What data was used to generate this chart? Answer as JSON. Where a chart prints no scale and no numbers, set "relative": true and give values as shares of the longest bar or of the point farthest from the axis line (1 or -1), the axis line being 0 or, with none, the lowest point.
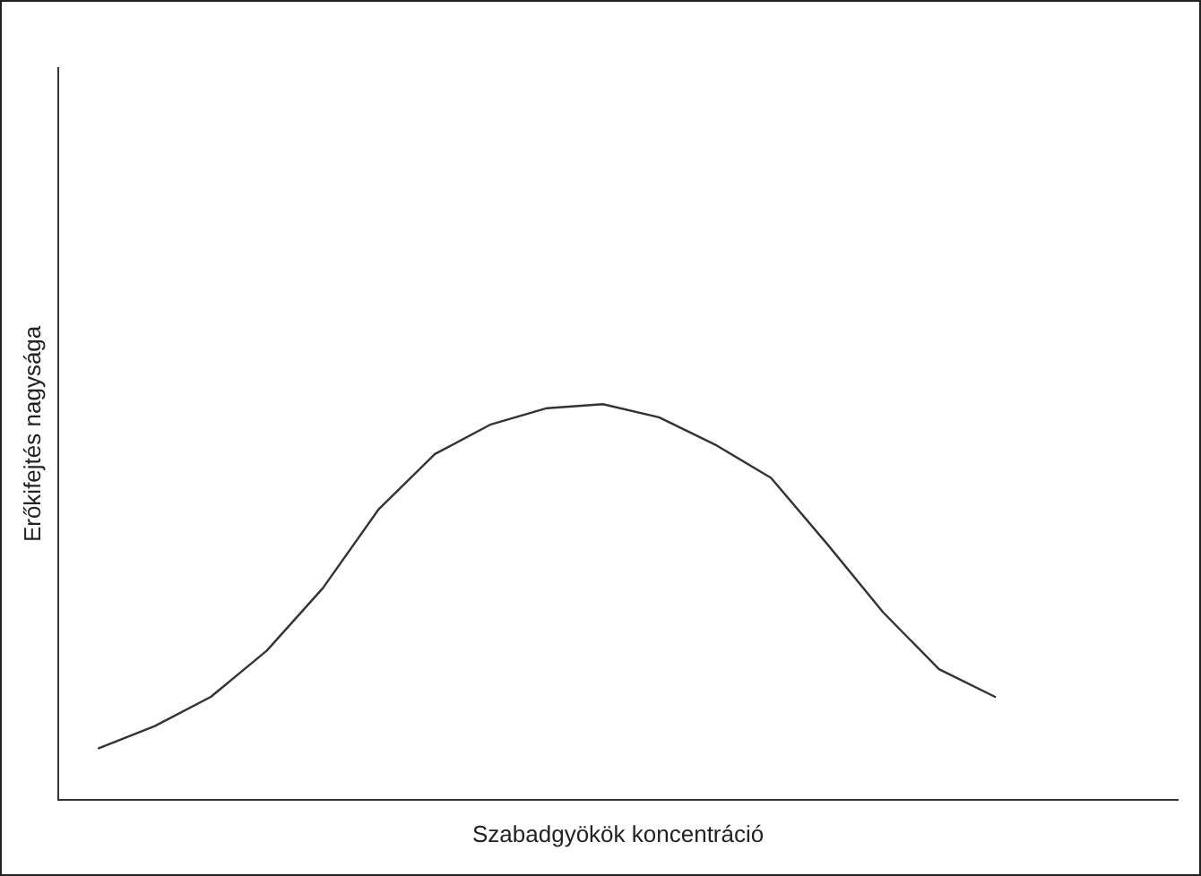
{
  "chart_data": {
    "type": "line",
    "relative": true,
    "xlabel": "Szabadgyökök koncentráció",
    "ylabel": "Erőkifejtés nagysága",
    "categories": [
      null,
      null,
      null,
      null,
      null,
      null,
      null,
      null,
      null,
      null,
      null,
      null,
      null,
      null,
      null,
      null,
      null
    ],
    "series": [
      {
        "color": "#333333",
        "values": [
          0.13,
          0.186,
          0.26,
          0.377,
          0.535,
          0.735,
          0.874,
          0.949,
          0.99,
          1,
          0.967,
          0.898,
          0.814,
          0.647,
          0.474,
          0.33,
          0.26
        ]
      }
    ],
    "marker": "none",
    "line_style": "solid",
    "grid": false,
    "legend": false,
    "tick_labels": false
  }
}
